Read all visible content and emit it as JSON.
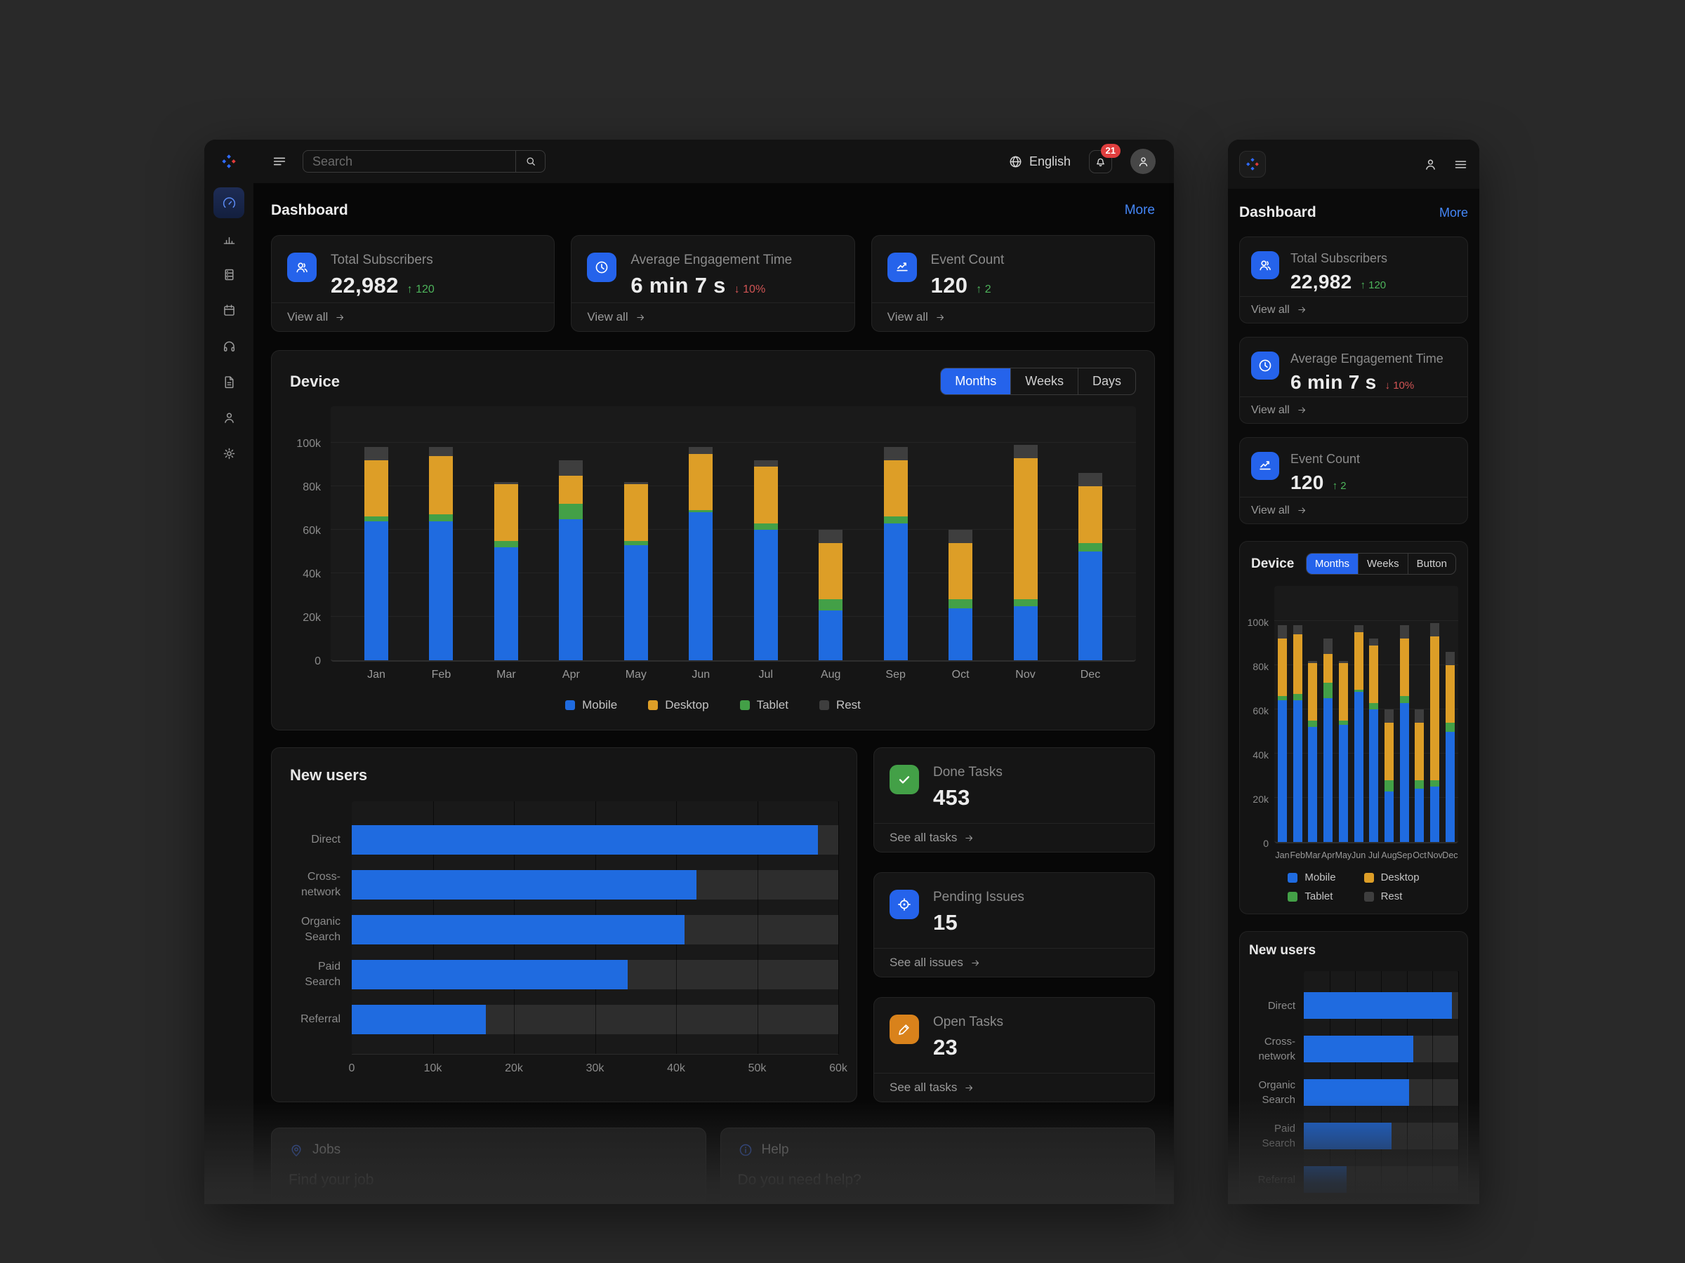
{
  "header": {
    "title": "Dashboard",
    "more_label": "More"
  },
  "topbar": {
    "search_placeholder": "Search",
    "language": "English",
    "notification_count": "21"
  },
  "sidebar": {
    "items": [
      "gauge",
      "bar-chart",
      "server",
      "calendar",
      "headphones",
      "document",
      "user",
      "settings"
    ],
    "active_index": 0
  },
  "stats": [
    {
      "icon": "subscribers",
      "title": "Total Subscribers",
      "value": "22,982",
      "delta": "120",
      "delta_dir": "up",
      "link": "View all"
    },
    {
      "icon": "clock",
      "title": "Average Engagement Time",
      "value": "6 min 7 s",
      "delta": "10%",
      "delta_dir": "down",
      "link": "View all"
    },
    {
      "icon": "trend",
      "title": "Event Count",
      "value": "120",
      "delta": "2",
      "delta_dir": "up",
      "link": "View all"
    }
  ],
  "device": {
    "title": "Device",
    "tabs_desktop": [
      "Months",
      "Weeks",
      "Days"
    ],
    "tabs_mobile": [
      "Months",
      "Weeks",
      "Button"
    ],
    "active_tab": "Months"
  },
  "tasks": [
    {
      "icon": "check",
      "color": "#43a047",
      "title": "Done Tasks",
      "value": "453",
      "link": "See all tasks"
    },
    {
      "icon": "target",
      "color": "#2563eb",
      "title": "Pending Issues",
      "value": "15",
      "link": "See all issues"
    },
    {
      "icon": "pen",
      "color": "#d9821b",
      "title": "Open Tasks",
      "value": "23",
      "link": "See all tasks"
    }
  ],
  "footer_cards": [
    {
      "icon": "pin",
      "title": "Jobs",
      "subtitle": "Find your job"
    },
    {
      "icon": "info",
      "title": "Help",
      "subtitle": "Do you need help?"
    }
  ],
  "colors": {
    "accent": "#2563eb",
    "link": "#4486f6",
    "positive": "#4db35b",
    "negative": "#d05454",
    "badge": "#e03e3e",
    "mobile_series": "#1f6be0",
    "desktop_series": "#dd9e27",
    "tablet_series": "#43a047",
    "rest_series": "#3e3e3e"
  },
  "chart_data": [
    {
      "id": "device-usage",
      "type": "bar",
      "stacked": true,
      "title": "Device",
      "categories": [
        "Jan",
        "Feb",
        "Mar",
        "Apr",
        "May",
        "Jun",
        "Jul",
        "Aug",
        "Sep",
        "Oct",
        "Nov",
        "Dec"
      ],
      "series": [
        {
          "name": "Mobile",
          "color": "#1f6be0",
          "values": [
            64,
            64,
            52,
            65,
            53,
            68,
            60,
            23,
            63,
            24,
            25,
            50
          ]
        },
        {
          "name": "Tablet",
          "color": "#43a047",
          "values": [
            2,
            3,
            3,
            7,
            2,
            1,
            3,
            5,
            3,
            4,
            3,
            4
          ]
        },
        {
          "name": "Desktop",
          "color": "#dd9e27",
          "values": [
            26,
            27,
            26,
            13,
            26,
            26,
            26,
            26,
            26,
            26,
            65,
            26
          ]
        },
        {
          "name": "Rest",
          "color": "#3e3e3e",
          "values": [
            6,
            4,
            1,
            7,
            1,
            3,
            3,
            6,
            6,
            6,
            6,
            6
          ]
        }
      ],
      "legend_order": [
        "Mobile",
        "Desktop",
        "Tablet",
        "Rest"
      ],
      "unit": "k",
      "value_scale": 1000,
      "ylim": [
        0,
        100
      ],
      "yticks": [
        "0",
        "20k",
        "40k",
        "60k",
        "80k",
        "100k"
      ],
      "grid": true,
      "legend_position": "bottom"
    },
    {
      "id": "new-users",
      "type": "bar",
      "orientation": "horizontal",
      "title": "New users",
      "categories": [
        "Direct",
        "Cross-network",
        "Organic Search",
        "Paid Search",
        "Referral"
      ],
      "values": [
        57.5,
        42.5,
        41,
        34,
        16.5
      ],
      "unit": "k",
      "value_scale": 1000,
      "xlim": [
        0,
        60
      ],
      "xticks": [
        "0",
        "10k",
        "20k",
        "30k",
        "40k",
        "50k",
        "60k"
      ],
      "bar_color": "#1f6be0",
      "track_color": "#2d2d2d",
      "grid": true
    }
  ]
}
